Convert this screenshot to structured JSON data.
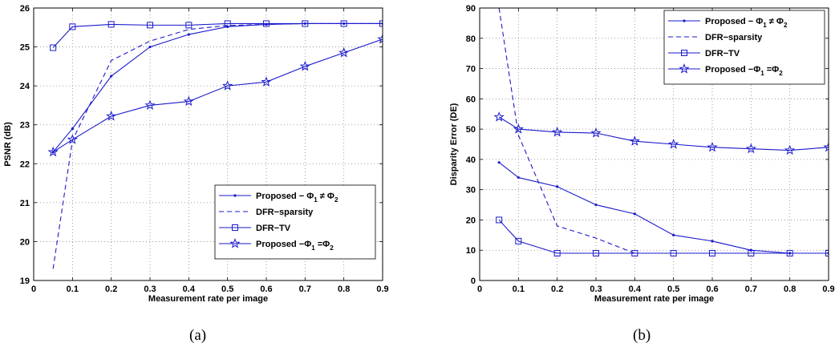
{
  "colors": {
    "series": "#1a1acc",
    "grid": "#888888",
    "axis": "#000000"
  },
  "panel_labels": [
    "(a)",
    "(b)"
  ],
  "chart_data": [
    {
      "type": "line",
      "title": "",
      "xlabel": "Measurement rate per image",
      "ylabel": "PSNR (dB)",
      "xlim": [
        0,
        0.9
      ],
      "ylim": [
        19,
        26
      ],
      "xticks": [
        0,
        0.1,
        0.2,
        0.3,
        0.4,
        0.5,
        0.6,
        0.7,
        0.8,
        0.9
      ],
      "xticklabels": [
        "0",
        "0.1",
        "0.2",
        "0.3",
        "0.4",
        "0.5",
        "0.6",
        "0.7",
        "0.8",
        "0.9"
      ],
      "yticks": [
        19,
        20,
        21,
        22,
        23,
        24,
        25,
        26
      ],
      "yticklabels": [
        "19",
        "20",
        "21",
        "22",
        "23",
        "24",
        "25",
        "26"
      ],
      "grid": true,
      "legend_position": "lower-right",
      "series": [
        {
          "name": "Proposed − Φ₁ ≠ Φ₂",
          "label_main": "Proposed − Φ",
          "label_sub1": "1",
          "label_rel": " ≠ Φ",
          "label_sub2": "2",
          "style": "solid",
          "marker": "dot",
          "x": [
            0.05,
            0.1,
            0.2,
            0.3,
            0.4,
            0.5,
            0.6,
            0.7,
            0.8,
            0.9
          ],
          "y": [
            22.3,
            22.9,
            24.25,
            25.0,
            25.32,
            25.52,
            25.58,
            25.6,
            25.6,
            25.6
          ]
        },
        {
          "name": "DFR−sparsity",
          "label_main": "DFR−sparsity",
          "style": "dashed",
          "marker": "none",
          "x": [
            0.05,
            0.1,
            0.2,
            0.3,
            0.4,
            0.5,
            0.6,
            0.7,
            0.8,
            0.9
          ],
          "y": [
            19.3,
            22.6,
            24.65,
            25.15,
            25.45,
            25.55,
            25.58,
            25.6,
            25.6,
            25.6
          ]
        },
        {
          "name": "DFR−TV",
          "label_main": "DFR−TV",
          "style": "solid",
          "marker": "square",
          "x": [
            0.05,
            0.1,
            0.2,
            0.3,
            0.4,
            0.5,
            0.6,
            0.7,
            0.8,
            0.9
          ],
          "y": [
            24.98,
            25.52,
            25.58,
            25.56,
            25.56,
            25.6,
            25.6,
            25.6,
            25.6,
            25.6
          ]
        },
        {
          "name": "Proposed −Φ₁ =Φ₂",
          "label_main": "Proposed −Φ",
          "label_sub1": "1",
          "label_rel": " =Φ",
          "label_sub2": "2",
          "style": "solid",
          "marker": "star",
          "x": [
            0.05,
            0.1,
            0.2,
            0.3,
            0.4,
            0.5,
            0.6,
            0.7,
            0.8,
            0.9
          ],
          "y": [
            22.3,
            22.62,
            23.22,
            23.5,
            23.6,
            24.0,
            24.1,
            24.5,
            24.85,
            25.2
          ]
        }
      ]
    },
    {
      "type": "line",
      "title": "",
      "xlabel": "Measurement rate per image",
      "ylabel": "Disparity Error (DE)",
      "xlim": [
        0,
        0.9
      ],
      "ylim": [
        0,
        90
      ],
      "xticks": [
        0,
        0.1,
        0.2,
        0.3,
        0.4,
        0.5,
        0.6,
        0.7,
        0.8,
        0.9
      ],
      "xticklabels": [
        "0",
        "0.1",
        "0.2",
        "0.3",
        "0.4",
        "0.5",
        "0.6",
        "0.7",
        "0.8",
        "0.9"
      ],
      "yticks": [
        0,
        10,
        20,
        30,
        40,
        50,
        60,
        70,
        80,
        90
      ],
      "yticklabels": [
        "0",
        "10",
        "20",
        "30",
        "40",
        "50",
        "60",
        "70",
        "80",
        "90"
      ],
      "grid": true,
      "legend_position": "top-right",
      "series": [
        {
          "name": "Proposed − Φ₁ ≠ Φ₂",
          "label_main": "Proposed − Φ",
          "label_sub1": "1",
          "label_rel": " ≠ Φ",
          "label_sub2": "2",
          "style": "solid",
          "marker": "dot",
          "x": [
            0.05,
            0.1,
            0.2,
            0.3,
            0.4,
            0.5,
            0.6,
            0.7,
            0.8,
            0.9
          ],
          "y": [
            39,
            34,
            31,
            25,
            22,
            15,
            13,
            10,
            9,
            9
          ]
        },
        {
          "name": "DFR−sparsity",
          "label_main": "DFR−sparsity",
          "style": "dashed",
          "marker": "none",
          "x": [
            0.05,
            0.1,
            0.2,
            0.3,
            0.4,
            0.5,
            0.6,
            0.7,
            0.8,
            0.9
          ],
          "y": [
            90,
            48,
            18,
            14,
            9,
            9,
            9,
            9,
            9,
            9
          ]
        },
        {
          "name": "DFR−TV",
          "label_main": "DFR−TV",
          "style": "solid",
          "marker": "square",
          "x": [
            0.05,
            0.1,
            0.2,
            0.3,
            0.4,
            0.5,
            0.6,
            0.7,
            0.8,
            0.9
          ],
          "y": [
            20,
            13,
            9,
            9,
            9,
            9,
            9,
            9,
            9,
            9
          ]
        },
        {
          "name": "Proposed −Φ₁ =Φ₂",
          "label_main": "Proposed −Φ",
          "label_sub1": "1",
          "label_rel": " =Φ",
          "label_sub2": "2",
          "style": "solid",
          "marker": "star",
          "x": [
            0.05,
            0.1,
            0.2,
            0.3,
            0.4,
            0.5,
            0.6,
            0.7,
            0.8,
            0.9
          ],
          "y": [
            54,
            50,
            49,
            48.7,
            46,
            45,
            44,
            43.5,
            43,
            44
          ]
        }
      ]
    }
  ]
}
